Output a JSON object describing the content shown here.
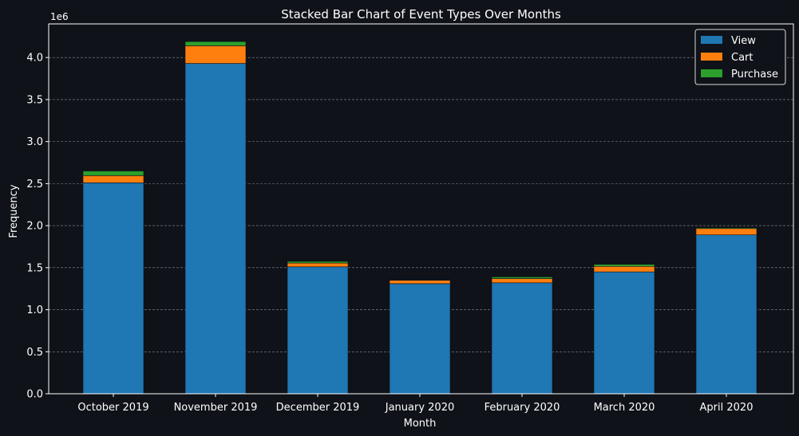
{
  "chart_data": {
    "type": "bar",
    "stacked": true,
    "title": "Stacked Bar Chart of Event Types Over Months",
    "xlabel": "Month",
    "ylabel": "Frequency",
    "y_offset_label": "1e6",
    "ylim": [
      0,
      4.4
    ],
    "yticks": [
      "0.0",
      "0.5",
      "1.0",
      "1.5",
      "2.0",
      "2.5",
      "3.0",
      "3.5",
      "4.0"
    ],
    "grid": true,
    "legend_position": "top-right",
    "categories": [
      "October 2019",
      "November 2019",
      "December 2019",
      "January 2020",
      "February 2020",
      "March 2020",
      "April 2020"
    ],
    "series": [
      {
        "name": "View",
        "color": "#1f77b4",
        "values": [
          2.51,
          3.93,
          1.51,
          1.31,
          1.32,
          1.45,
          1.89
        ]
      },
      {
        "name": "Cart",
        "color": "#ff7f0e",
        "values": [
          0.085,
          0.21,
          0.045,
          0.04,
          0.05,
          0.065,
          0.075
        ]
      },
      {
        "name": "Purchase",
        "color": "#2ca02c",
        "values": [
          0.055,
          0.05,
          0.02,
          0.005,
          0.02,
          0.025,
          0.01
        ]
      }
    ]
  }
}
